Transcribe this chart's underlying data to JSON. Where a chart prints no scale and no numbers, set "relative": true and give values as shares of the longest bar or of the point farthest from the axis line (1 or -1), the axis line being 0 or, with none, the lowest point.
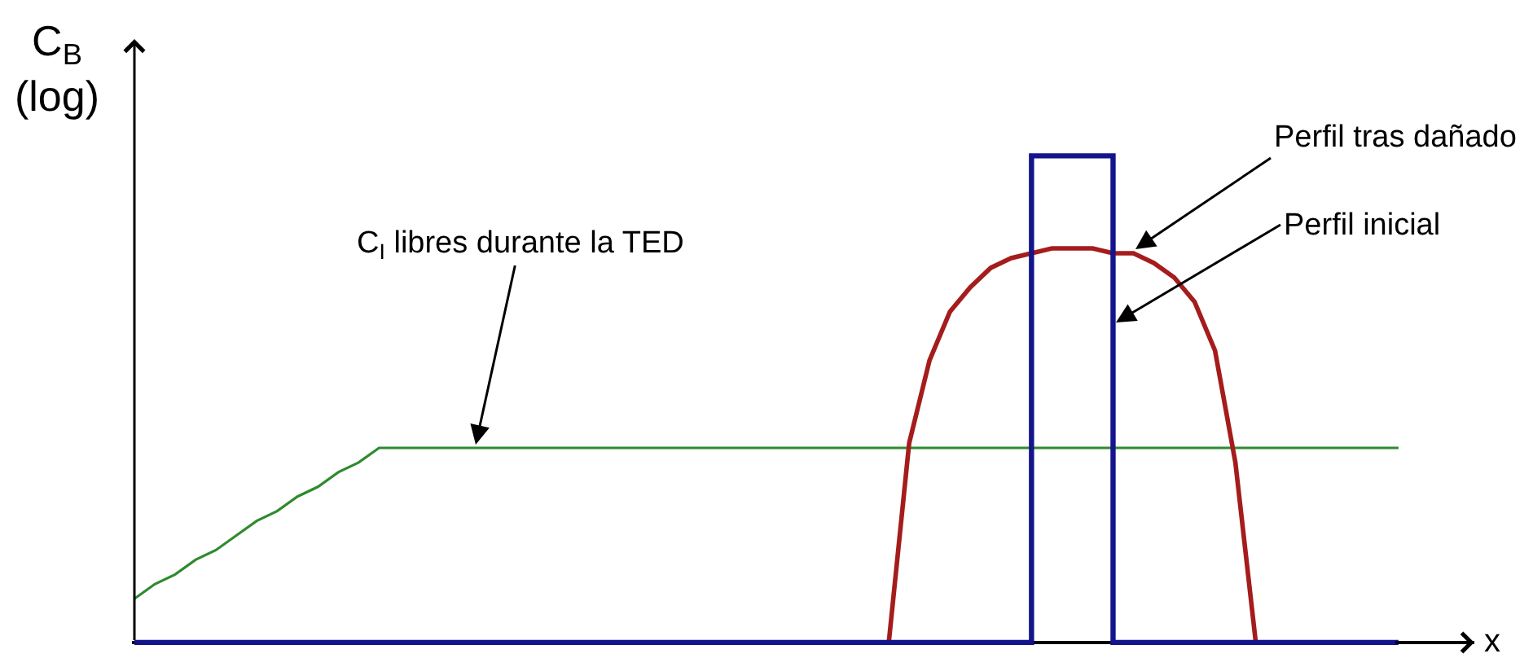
{
  "chart_data": {
    "type": "line",
    "relative": true,
    "xlabel": "x",
    "ylabel": "C$_{B}$\n(log)",
    "categories": [
      null,
      null,
      null,
      null,
      null,
      null,
      null,
      null,
      null,
      null,
      null,
      null,
      null,
      null,
      null,
      null,
      null,
      null,
      null,
      null,
      null,
      null,
      null,
      null,
      null,
      null,
      null,
      null,
      null,
      null,
      null,
      null,
      null,
      null,
      null,
      null,
      null,
      null,
      null,
      null,
      null,
      null,
      null,
      null,
      null,
      null,
      null,
      null,
      null,
      null,
      null,
      null,
      null,
      null,
      null,
      null,
      null,
      null,
      null,
      null,
      null,
      null,
      null
    ],
    "series": [
      {
        "color": "#2e8b2e",
        "values": [
          0.09,
          0.12,
          0.14,
          0.17,
          0.19,
          0.22,
          0.25,
          0.27,
          0.3,
          0.32,
          0.35,
          0.37,
          0.4,
          0.4,
          0.4,
          0.4,
          0.4,
          0.4,
          0.4,
          0.4,
          0.4,
          0.4,
          0.4,
          0.4,
          0.4,
          0.4,
          0.4,
          0.4,
          0.4,
          0.4,
          0.4,
          0.4,
          0.4,
          0.4,
          0.4,
          0.4,
          0.4,
          0.4,
          0.4,
          0.4,
          0.4,
          0.4,
          0.4,
          0.4,
          0.4,
          0.4,
          0.4,
          0.4,
          0.4,
          0.4,
          0.4,
          0.4,
          0.4,
          0.4,
          0.4,
          0.4,
          0.4,
          0.4,
          0.4,
          0.4,
          0.4,
          0.4,
          0.4
        ]
      },
      {
        "color": "#a51c1c",
        "values": [
          null,
          null,
          null,
          null,
          null,
          null,
          null,
          null,
          null,
          null,
          null,
          null,
          null,
          null,
          null,
          null,
          null,
          null,
          null,
          null,
          null,
          null,
          null,
          null,
          null,
          null,
          null,
          null,
          null,
          null,
          null,
          null,
          null,
          null,
          null,
          null,
          null,
          0,
          0.41,
          0.58,
          0.68,
          0.73,
          0.77,
          0.79,
          0.8,
          0.81,
          0.81,
          0.81,
          0.8,
          0.8,
          0.78,
          0.75,
          0.7,
          0.6,
          0.37,
          0,
          null,
          null,
          null,
          null,
          null,
          null,
          null
        ]
      },
      {
        "type": "step",
        "color": "#14148c",
        "values": [
          0,
          0,
          0,
          0,
          0,
          0,
          0,
          0,
          0,
          0,
          0,
          0,
          0,
          0,
          0,
          0,
          0,
          0,
          0,
          0,
          0,
          0,
          0,
          0,
          0,
          0,
          0,
          0,
          0,
          0,
          0,
          0,
          0,
          0,
          0,
          0,
          0,
          0,
          0,
          0,
          0,
          0,
          0,
          0,
          1,
          1,
          1,
          1,
          0,
          0,
          0,
          0,
          0,
          0,
          0,
          0,
          0,
          0,
          0,
          0,
          0,
          0,
          0
        ]
      }
    ],
    "annotations": [
      "C$_{I}$ libres durante la TED",
      "Perfil tras dañado",
      "Perfil inicial"
    ]
  }
}
